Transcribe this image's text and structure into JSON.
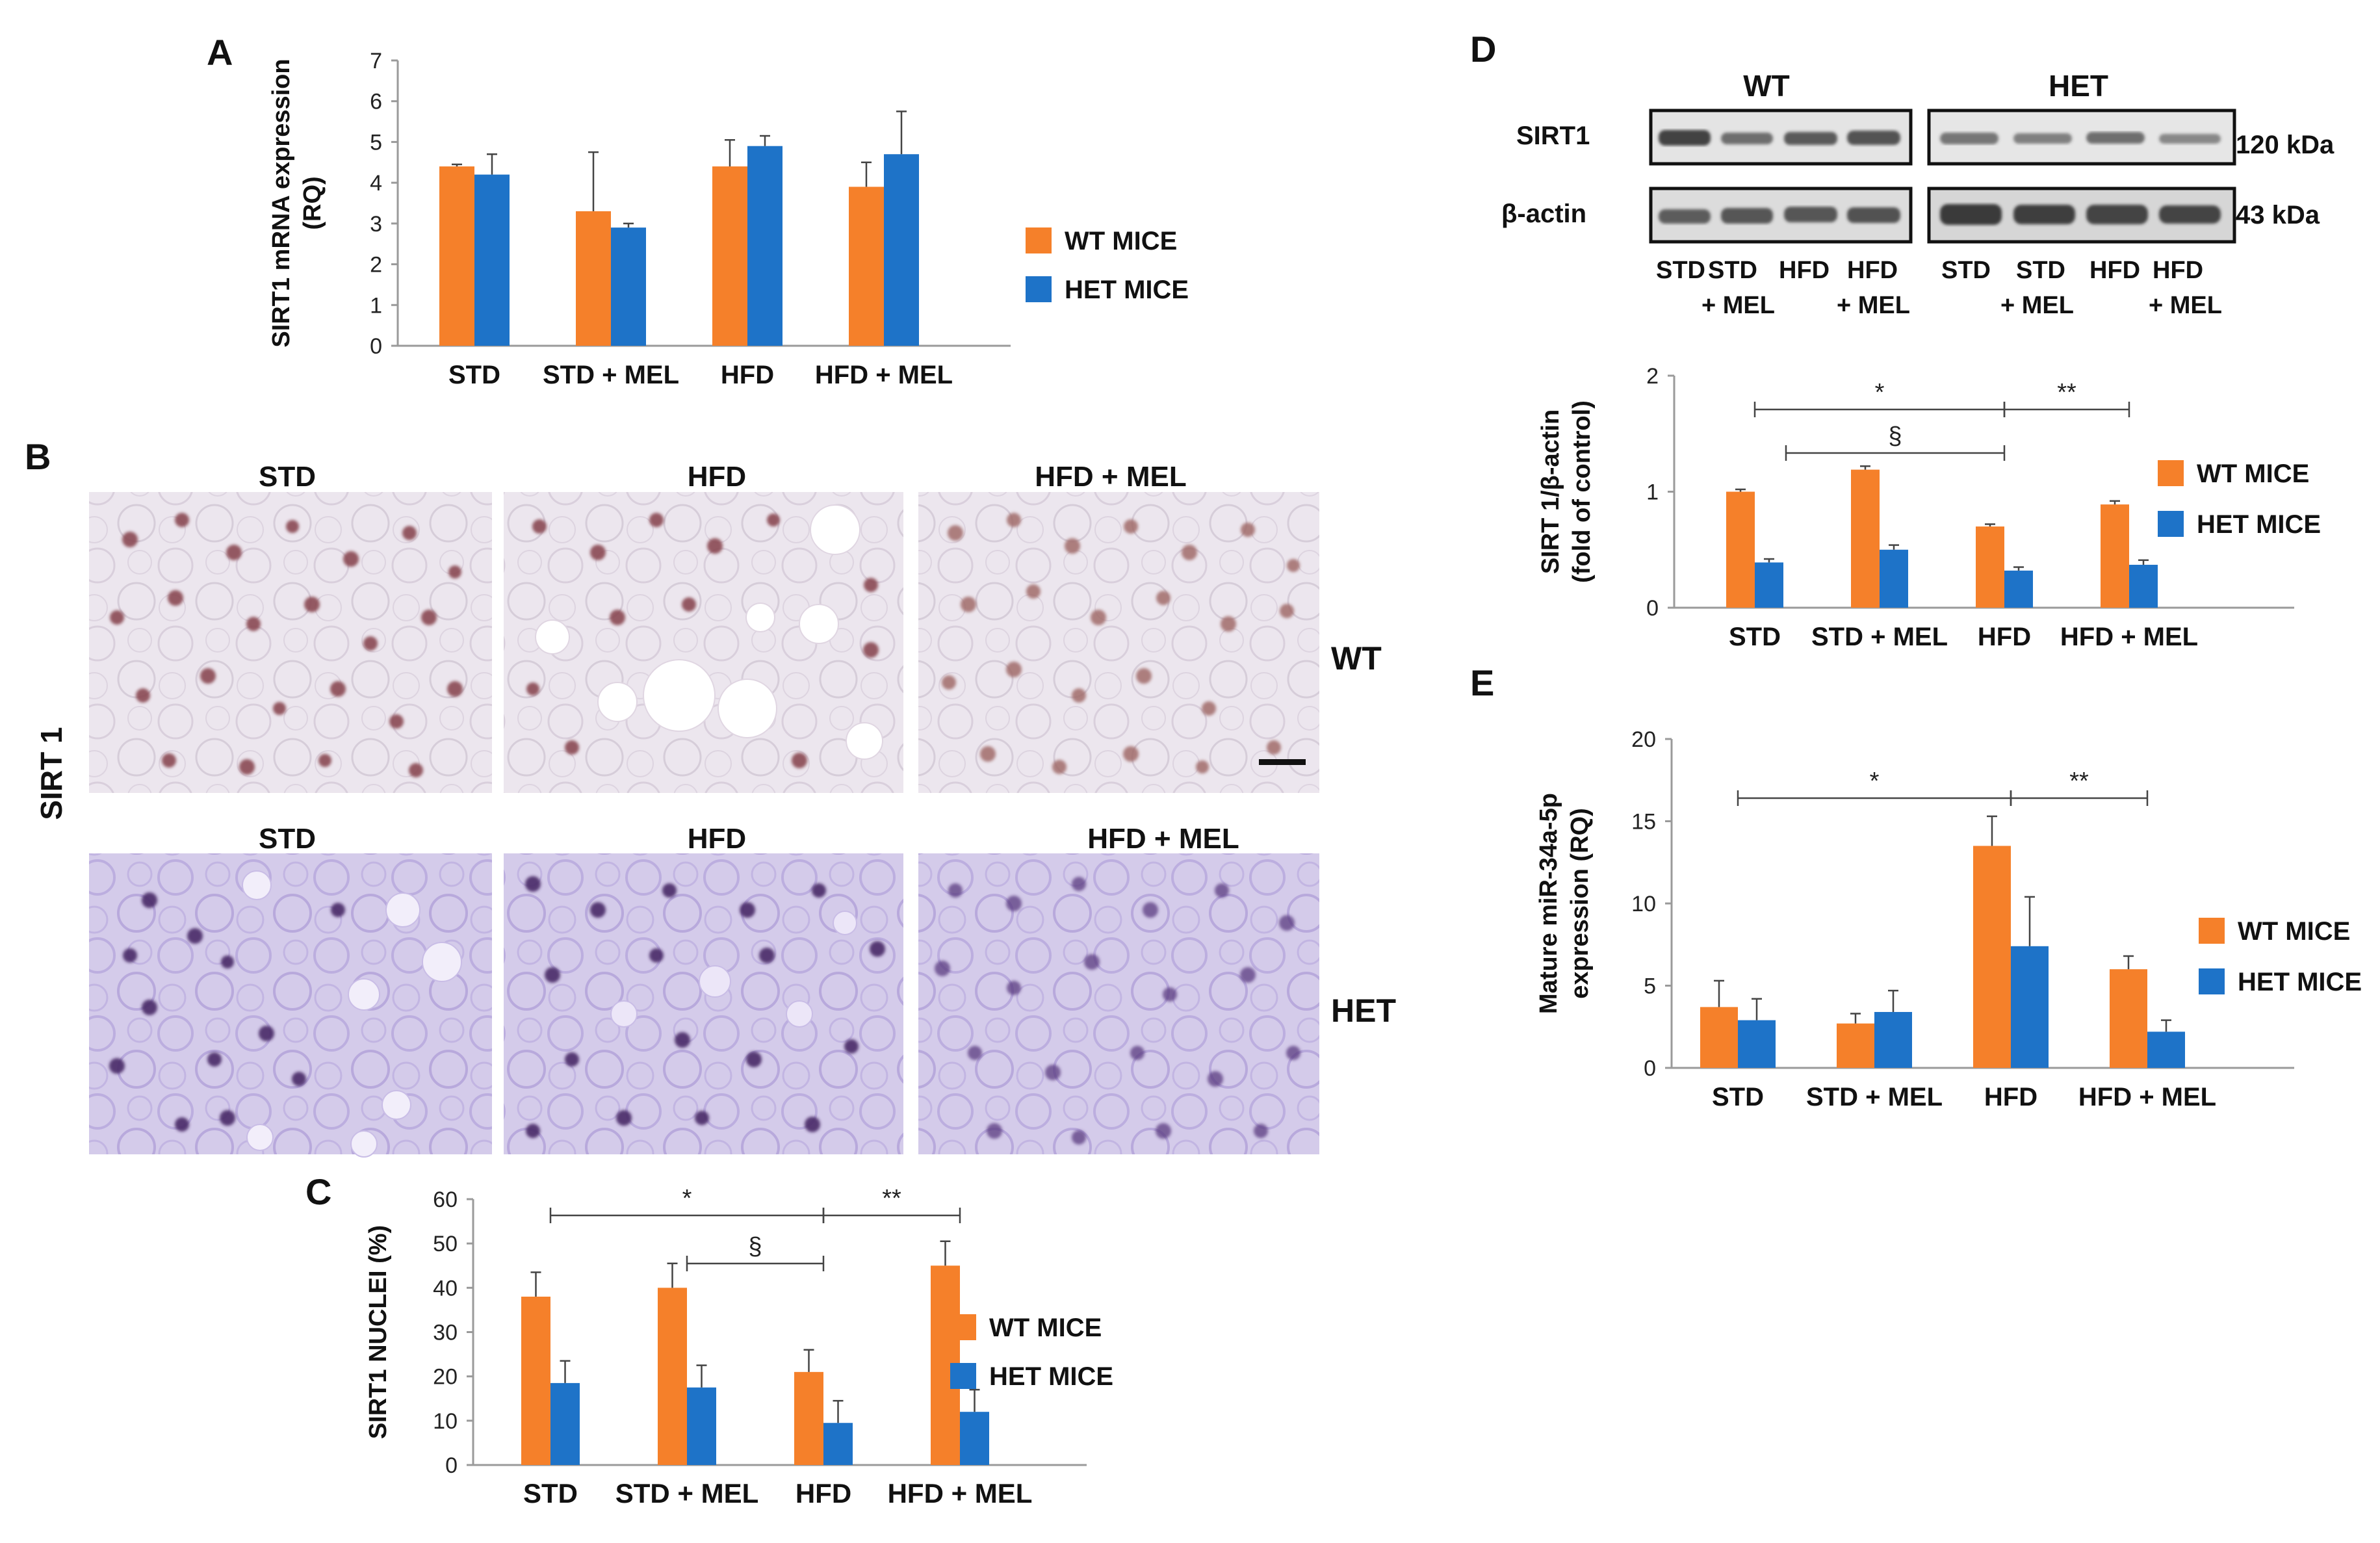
{
  "panels": {
    "A": {
      "letter": "A"
    },
    "B": {
      "letter": "B"
    },
    "C": {
      "letter": "C"
    },
    "D": {
      "letter": "D"
    },
    "E": {
      "letter": "E"
    }
  },
  "colors": {
    "wt": "#F5802A",
    "het": "#1E73C8",
    "axis": "#9a9a9a",
    "ink": "#111111"
  },
  "histology": {
    "row_label": "SIRT 1",
    "wt_label": "WT",
    "het_label": "HET",
    "wt_titles": [
      "STD",
      "HFD",
      "HFD + MEL"
    ],
    "het_titles": [
      "STD",
      "HFD",
      "HFD + MEL"
    ]
  },
  "western": {
    "wt_header": "WT",
    "het_header": "HET",
    "sirt1_label": "SIRT1",
    "actin_label": "β-actin",
    "sirt1_kda": "120 kDa",
    "actin_kda": "43 kDa",
    "lanes": [
      {
        "l1": "STD",
        "l2": ""
      },
      {
        "l1": "STD",
        "l2": "+ MEL"
      },
      {
        "l1": "HFD",
        "l2": ""
      },
      {
        "l1": "HFD",
        "l2": "+ MEL"
      },
      {
        "l1": "STD",
        "l2": ""
      },
      {
        "l1": "STD",
        "l2": "+ MEL"
      },
      {
        "l1": "HFD",
        "l2": ""
      },
      {
        "l1": "HFD",
        "l2": "+ MEL"
      }
    ]
  },
  "chart_data": [
    {
      "panel": "A",
      "type": "bar",
      "ylabel": "SIRT1 mRNA expression (RQ)",
      "ylabel_lines": [
        "SIRT1 mRNA expression",
        "(RQ)"
      ],
      "categories": [
        "STD",
        "STD + MEL",
        "HFD",
        "HFD + MEL"
      ],
      "ylim": [
        0,
        7
      ],
      "yticks": [
        0,
        1,
        2,
        3,
        4,
        5,
        6,
        7
      ],
      "series": [
        {
          "name": "WT MICE",
          "values": [
            4.4,
            3.3,
            4.4,
            3.9
          ],
          "errors": [
            0.05,
            1.45,
            0.65,
            0.6
          ]
        },
        {
          "name": "HET MICE",
          "values": [
            4.2,
            2.9,
            4.9,
            4.7
          ],
          "errors": [
            0.5,
            0.1,
            0.25,
            1.05
          ]
        }
      ],
      "legend": [
        "WT MICE",
        "HET MICE"
      ],
      "significance": []
    },
    {
      "panel": "C",
      "type": "bar",
      "ylabel": "SIRT1 NUCLEI (%)",
      "ylabel_lines": [
        "SIRT1 NUCLEI (%)"
      ],
      "categories": [
        "STD",
        "STD + MEL",
        "HFD",
        "HFD + MEL"
      ],
      "ylim": [
        0,
        60
      ],
      "yticks": [
        0,
        10,
        20,
        30,
        40,
        50,
        60
      ],
      "series": [
        {
          "name": "WT MICE",
          "values": [
            38,
            40,
            21,
            45
          ],
          "errors": [
            5.5,
            5.5,
            5,
            5.5
          ]
        },
        {
          "name": "HET MICE",
          "values": [
            18.5,
            17.5,
            9.5,
            12
          ],
          "errors": [
            5,
            5,
            5,
            5
          ]
        }
      ],
      "legend": [
        "WT MICE",
        "HET MICE"
      ],
      "significance": [
        {
          "from": 0,
          "to": 2,
          "label": "*",
          "level": 1
        },
        {
          "from": 2,
          "to": 3,
          "label": "**",
          "level": 1
        },
        {
          "from": 1,
          "to": 2,
          "label": "§",
          "level": 0
        }
      ]
    },
    {
      "panel": "D",
      "type": "bar",
      "ylabel": "SIRT 1/β-actin (fold of control)",
      "ylabel_lines": [
        "SIRT 1/β-actin",
        "(fold of control)"
      ],
      "categories": [
        "STD",
        "STD + MEL",
        "HFD",
        "HFD + MEL"
      ],
      "ylim": [
        0,
        2
      ],
      "yticks": [
        0,
        1,
        2
      ],
      "series": [
        {
          "name": "WT MICE",
          "values": [
            1.0,
            1.19,
            0.7,
            0.89
          ],
          "errors": [
            0.02,
            0.03,
            0.02,
            0.03
          ]
        },
        {
          "name": "HET MICE",
          "values": [
            0.39,
            0.5,
            0.32,
            0.37
          ],
          "errors": [
            0.03,
            0.04,
            0.03,
            0.04
          ]
        }
      ],
      "legend": [
        "WT MICE",
        "HET MICE"
      ],
      "significance": [
        {
          "from": 0,
          "to": 2,
          "label": "*",
          "level": 1
        },
        {
          "from": 2,
          "to": 3,
          "label": "**",
          "level": 1
        },
        {
          "from": 0.25,
          "to": 2,
          "label": "§",
          "level": 0
        }
      ]
    },
    {
      "panel": "E",
      "type": "bar",
      "ylabel": "Mature miR-34a-5p expression (RQ)",
      "ylabel_lines": [
        "Mature miR-34a-5p",
        "expression (RQ)"
      ],
      "categories": [
        "STD",
        "STD + MEL",
        "HFD",
        "HFD + MEL"
      ],
      "ylim": [
        0,
        20
      ],
      "yticks": [
        0,
        5,
        10,
        15,
        20
      ],
      "series": [
        {
          "name": "WT MICE",
          "values": [
            3.7,
            2.7,
            13.5,
            6.0
          ],
          "errors": [
            1.6,
            0.6,
            1.8,
            0.8
          ]
        },
        {
          "name": "HET MICE",
          "values": [
            2.9,
            3.4,
            7.4,
            2.2
          ],
          "errors": [
            1.3,
            1.3,
            3.0,
            0.7
          ]
        }
      ],
      "legend": [
        "WT MICE",
        "HET MICE"
      ],
      "significance": [
        {
          "from": 0,
          "to": 2,
          "label": "*",
          "level": 0
        },
        {
          "from": 2,
          "to": 3,
          "label": "**",
          "level": 0
        }
      ]
    }
  ]
}
